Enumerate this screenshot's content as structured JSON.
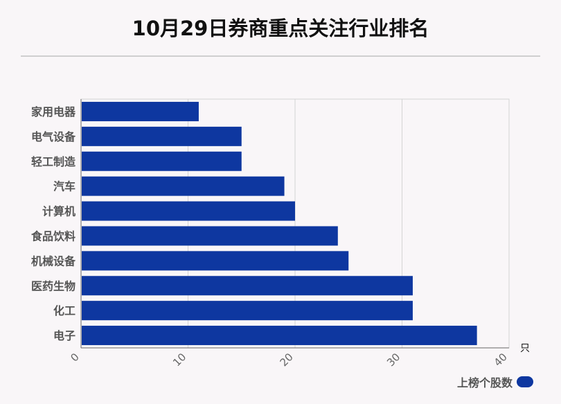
{
  "chart_data": {
    "type": "bar",
    "orientation": "horizontal",
    "title": "10月29日券商重点关注行业排名",
    "categories": [
      "家用电器",
      "电气设备",
      "轻工制造",
      "汽车",
      "计算机",
      "食品饮料",
      "机械设备",
      "医药生物",
      "化工",
      "电子"
    ],
    "series": [
      {
        "name": "上榜个股数",
        "values": [
          11,
          15,
          15,
          19,
          20,
          24,
          25,
          31,
          31,
          37
        ]
      }
    ],
    "xlim": [
      0,
      40
    ],
    "xticks": [
      "0",
      "10",
      "20",
      "30",
      "40"
    ],
    "xunit": "只",
    "grid": true,
    "legend_position": "bottom-right",
    "colors": {
      "bar": "#0e37a0",
      "grid": "#d4d4d4",
      "axis": "#666666"
    }
  }
}
